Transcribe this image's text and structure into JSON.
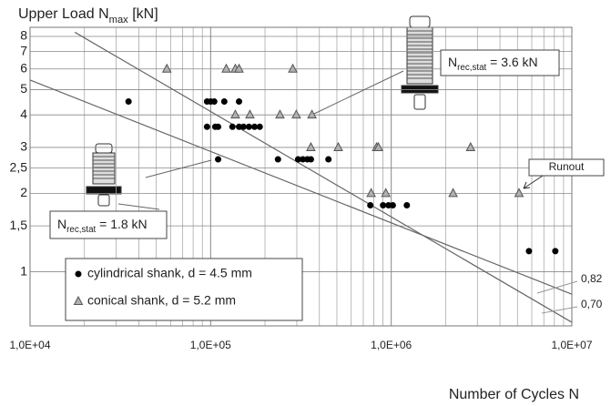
{
  "chart_data": {
    "type": "scatter",
    "title": {
      "main": "Upper Load N",
      "sub": "max",
      "rest": " [kN]"
    },
    "x_label": "Number of Cycles N",
    "x_log": true,
    "y_log": true,
    "grid": true,
    "x_minor_grid": true,
    "xlim": [
      10000,
      10000000
    ],
    "ylim": [
      0.62,
      8
    ],
    "xticks": [
      {
        "value": 10000,
        "label": "1,0E+04"
      },
      {
        "value": 100000,
        "label": "1,0E+05"
      },
      {
        "value": 1000000,
        "label": "1,0E+06"
      },
      {
        "value": 10000000,
        "label": "1,0E+07"
      }
    ],
    "yticks": [
      1,
      {
        "value": 1.5,
        "label": "1,5"
      },
      2,
      {
        "value": 2.5,
        "label": "2,5"
      },
      3,
      4,
      5,
      6,
      7,
      8
    ],
    "series": [
      {
        "name": "cylindrical shank, d = 4.5 mm",
        "marker": "circle",
        "color": "#000000",
        "x": [
          35100,
          95500,
          100000,
          104700,
          119000,
          143600,
          95500,
          106000,
          110000,
          132000,
          143600,
          152000,
          163000,
          175000,
          187000,
          110000,
          236000,
          305000,
          324000,
          343000,
          359000,
          449000,
          766000,
          901000,
          966000,
          1020000,
          1220000,
          5790000,
          8100000
        ],
        "values": [
          4.5,
          4.5,
          4.5,
          4.5,
          4.5,
          4.5,
          3.6,
          3.6,
          3.6,
          3.6,
          3.6,
          3.6,
          3.6,
          3.6,
          3.6,
          2.7,
          2.7,
          2.7,
          2.7,
          2.7,
          2.7,
          2.7,
          1.8,
          1.8,
          1.8,
          1.8,
          1.8,
          1.2,
          1.2
        ]
      },
      {
        "name": "conical shank, d = 5.2 mm",
        "marker": "triangle",
        "color": "#b0b0b0",
        "x": [
          57200,
          122000,
          137000,
          143600,
          285000,
          137000,
          165000,
          242000,
          298000,
          364000,
          359000,
          509000,
          830000,
          849000,
          2750000,
          774000,
          933000,
          2200000,
          5100000
        ],
        "values": [
          6,
          6,
          6,
          6,
          6,
          4,
          4,
          4,
          4,
          4,
          3,
          3,
          3,
          3,
          3,
          2,
          2,
          2,
          2
        ]
      }
    ],
    "lines": [
      {
        "label": "0,82",
        "color": "#666666",
        "x": [
          10000,
          10000000
        ],
        "values": [
          5.44,
          0.82
        ]
      },
      {
        "label": "0,70",
        "color": "#666666",
        "x": [
          17700,
          10000000
        ],
        "values": [
          8.3,
          0.64
        ]
      }
    ],
    "annotations": [
      {
        "main": "N",
        "sub": "rec,stat",
        "rest": " = 3.6 kN"
      },
      {
        "main": "N",
        "sub": "rec,stat",
        "rest": " = 1.8 kN"
      },
      {
        "text": "Runout"
      }
    ]
  }
}
